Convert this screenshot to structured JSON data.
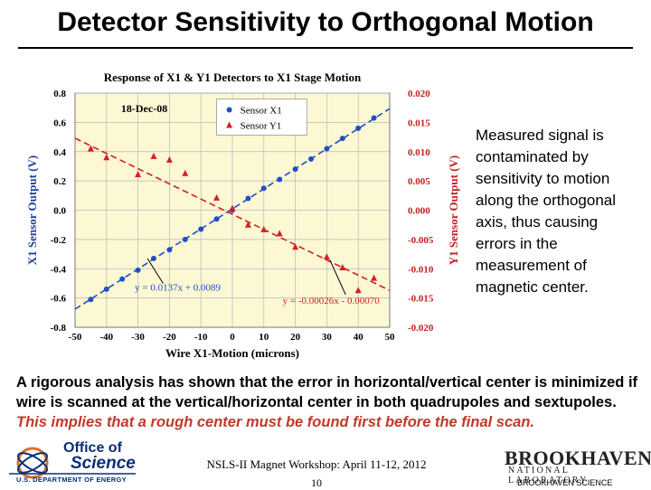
{
  "slide": {
    "title": "Detector Sensitivity to Orthogonal Motion",
    "side_text": "Measured signal is contaminated by sensitivity to motion along the orthogonal axis, thus causing errors in the measurement of magnetic center.",
    "paragraph_black": "A rigorous analysis has shown that the error in horizontal/vertical center is minimized if wire is scanned at the vertical/horizontal center in both quadrupoles and sextupoles.",
    "paragraph_red": "This implies that a rough center must be found first before the final scan.",
    "footer_center": "NSLS-II Magnet Workshop: April 11-12, 2012",
    "page_number": "10"
  },
  "logos": {
    "office_line1": "Office of",
    "office_line2": "Science",
    "doe": "U.S. DEPARTMENT OF ENERGY",
    "bnl_name": "BROOKHAVEN",
    "bnl_lab": "NATIONAL LABORATORY",
    "bnl_science": "BROOKHAVEN SCIENCE"
  },
  "chart_data": {
    "type": "scatter",
    "title": "Response of X1 & Y1 Detectors to X1 Stage Motion",
    "date_label": "18-Dec-08",
    "xlabel": "Wire X1-Motion (microns)",
    "ylabel_left": "X1 Sensor Output (V)",
    "ylabel_right": "Y1 Sensor Output (V)",
    "xlim": [
      -50,
      50
    ],
    "ylim_left": [
      -0.8,
      0.8
    ],
    "ylim_right": [
      -0.02,
      0.02
    ],
    "x_ticks": [
      "-50",
      "-40",
      "-30",
      "-20",
      "-10",
      "0",
      "10",
      "20",
      "30",
      "40",
      "50"
    ],
    "y_ticks_left": [
      "0.8",
      "0.6",
      "0.4",
      "0.2",
      "0.0",
      "-0.2",
      "-0.4",
      "-0.6",
      "-0.8"
    ],
    "y_ticks_right": [
      "0.020",
      "0.015",
      "0.010",
      "0.005",
      "0.000",
      "-0.005",
      "-0.010",
      "-0.015",
      "-0.020"
    ],
    "grid": true,
    "legend_position": "top-center",
    "colors": {
      "plot_bg": "#fcf8d4",
      "x1": "#1f4fc2",
      "y1": "#d42020"
    },
    "series": [
      {
        "name": "Sensor X1",
        "axis": "left",
        "marker": "circle",
        "x": [
          -45,
          -40,
          -35,
          -30,
          -25,
          -20,
          -15,
          -10,
          -5,
          0,
          5,
          10,
          15,
          20,
          25,
          30,
          35,
          40,
          45
        ],
        "y": [
          -0.61,
          -0.54,
          -0.47,
          -0.41,
          -0.33,
          -0.27,
          -0.2,
          -0.13,
          -0.06,
          0.0,
          0.08,
          0.15,
          0.21,
          0.28,
          0.35,
          0.42,
          0.49,
          0.56,
          0.63
        ]
      },
      {
        "name": "Sensor Y1",
        "axis": "right",
        "marker": "triangle",
        "x": [
          -45,
          -40,
          -30,
          -25,
          -20,
          -15,
          -5,
          0,
          5,
          10,
          15,
          20,
          30,
          35,
          40,
          45
        ],
        "y": [
          0.0105,
          0.009,
          0.0061,
          0.0092,
          0.0086,
          0.0063,
          0.0021,
          0.0003,
          -0.0025,
          -0.0033,
          -0.004,
          -0.0063,
          -0.008,
          -0.0098,
          -0.0137,
          -0.0116
        ]
      }
    ],
    "trendlines": [
      {
        "series": "Sensor X1",
        "slope": 0.0137,
        "intercept": 0.0089,
        "label": "y = 0.0137x + 0.0089"
      },
      {
        "series": "Sensor Y1",
        "slope": -0.00026,
        "intercept": -0.0007,
        "label": "y = -0.00026x - 0.00070"
      }
    ]
  }
}
